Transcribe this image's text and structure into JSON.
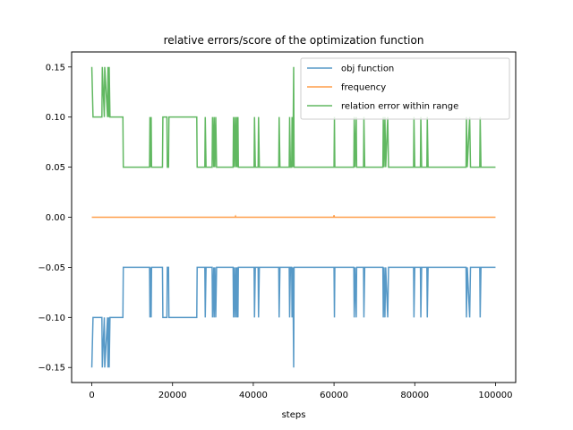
{
  "chart_data": {
    "type": "line",
    "title": "relative errors/score of the optimization function",
    "xlabel": "steps",
    "ylabel": "",
    "xlim": [
      -5000,
      105000
    ],
    "ylim": [
      -0.165,
      0.165
    ],
    "xticks": [
      0,
      20000,
      40000,
      60000,
      80000,
      100000
    ],
    "yticks": [
      -0.15,
      -0.1,
      -0.05,
      0.0,
      0.05,
      0.1,
      0.15
    ],
    "ytick_labels": [
      "−0.15",
      "−0.10",
      "−0.05",
      "0.00",
      "0.05",
      "0.10",
      "0.15"
    ],
    "grid": false,
    "legend_position": "upper-right",
    "series": [
      {
        "name": "obj function",
        "color": "#1f77b4",
        "points": [
          [
            0,
            -0.15
          ],
          [
            300,
            -0.1
          ],
          [
            2500,
            -0.1
          ],
          [
            2600,
            -0.15
          ],
          [
            3100,
            -0.1
          ],
          [
            3200,
            -0.15
          ],
          [
            3900,
            -0.1
          ],
          [
            4000,
            -0.15
          ],
          [
            4200,
            -0.1
          ],
          [
            4300,
            -0.15
          ],
          [
            4500,
            -0.1
          ],
          [
            7700,
            -0.1
          ],
          [
            7800,
            -0.05
          ],
          [
            14300,
            -0.05
          ],
          [
            14400,
            -0.1
          ],
          [
            14500,
            -0.05
          ],
          [
            14700,
            -0.1
          ],
          [
            14800,
            -0.05
          ],
          [
            17500,
            -0.05
          ],
          [
            17600,
            -0.1
          ],
          [
            18600,
            -0.1
          ],
          [
            18700,
            -0.05
          ],
          [
            19000,
            -0.05
          ],
          [
            19100,
            -0.1
          ],
          [
            26000,
            -0.1
          ],
          [
            26100,
            -0.05
          ],
          [
            28000,
            -0.05
          ],
          [
            28100,
            -0.1
          ],
          [
            28300,
            -0.05
          ],
          [
            29800,
            -0.05
          ],
          [
            29900,
            -0.1
          ],
          [
            30200,
            -0.05
          ],
          [
            30300,
            -0.1
          ],
          [
            30500,
            -0.05
          ],
          [
            30700,
            -0.1
          ],
          [
            30900,
            -0.05
          ],
          [
            35000,
            -0.05
          ],
          [
            35100,
            -0.1
          ],
          [
            35300,
            -0.05
          ],
          [
            35500,
            -0.1
          ],
          [
            35700,
            -0.05
          ],
          [
            35900,
            -0.1
          ],
          [
            36000,
            -0.05
          ],
          [
            36200,
            -0.1
          ],
          [
            36300,
            -0.05
          ],
          [
            40200,
            -0.05
          ],
          [
            40300,
            -0.1
          ],
          [
            40500,
            -0.05
          ],
          [
            41200,
            -0.05
          ],
          [
            41300,
            -0.1
          ],
          [
            41500,
            -0.05
          ],
          [
            46300,
            -0.05
          ],
          [
            46400,
            -0.1
          ],
          [
            46600,
            -0.05
          ],
          [
            48900,
            -0.05
          ],
          [
            49000,
            -0.1
          ],
          [
            49200,
            -0.05
          ],
          [
            49500,
            -0.05
          ],
          [
            49600,
            -0.1
          ],
          [
            49800,
            -0.05
          ],
          [
            50000,
            -0.15
          ],
          [
            50100,
            -0.05
          ],
          [
            60000,
            -0.05
          ],
          [
            60100,
            -0.1
          ],
          [
            60200,
            -0.05
          ],
          [
            64900,
            -0.05
          ],
          [
            65000,
            -0.1
          ],
          [
            65200,
            -0.05
          ],
          [
            65500,
            -0.1
          ],
          [
            65600,
            -0.05
          ],
          [
            67300,
            -0.05
          ],
          [
            67400,
            -0.1
          ],
          [
            67600,
            -0.05
          ],
          [
            72100,
            -0.05
          ],
          [
            72200,
            -0.1
          ],
          [
            72400,
            -0.05
          ],
          [
            72600,
            -0.1
          ],
          [
            72800,
            -0.05
          ],
          [
            73300,
            -0.1
          ],
          [
            73500,
            -0.05
          ],
          [
            79700,
            -0.05
          ],
          [
            79800,
            -0.1
          ],
          [
            80000,
            -0.05
          ],
          [
            81400,
            -0.05
          ],
          [
            81500,
            -0.1
          ],
          [
            81700,
            -0.05
          ],
          [
            83000,
            -0.05
          ],
          [
            83100,
            -0.1
          ],
          [
            83300,
            -0.05
          ],
          [
            92700,
            -0.05
          ],
          [
            92800,
            -0.1
          ],
          [
            93000,
            -0.05
          ],
          [
            93600,
            -0.1
          ],
          [
            93800,
            -0.05
          ],
          [
            96100,
            -0.05
          ],
          [
            96200,
            -0.1
          ],
          [
            96400,
            -0.05
          ],
          [
            100000,
            -0.05
          ]
        ]
      },
      {
        "name": "frequency",
        "color": "#ff7f0e",
        "points": [
          [
            0,
            0.0
          ],
          [
            35500,
            0.0
          ],
          [
            35600,
            0.001
          ],
          [
            35700,
            0.0
          ],
          [
            59900,
            0.0
          ],
          [
            60000,
            0.002
          ],
          [
            60100,
            0.0
          ],
          [
            100000,
            0.0
          ]
        ]
      },
      {
        "name": "relation error within range",
        "color": "#2ca02c",
        "points": [
          [
            0,
            0.15
          ],
          [
            300,
            0.1
          ],
          [
            2500,
            0.1
          ],
          [
            2600,
            0.15
          ],
          [
            3100,
            0.1
          ],
          [
            3200,
            0.15
          ],
          [
            3900,
            0.1
          ],
          [
            4000,
            0.15
          ],
          [
            4200,
            0.1
          ],
          [
            4300,
            0.15
          ],
          [
            4500,
            0.1
          ],
          [
            7700,
            0.1
          ],
          [
            7800,
            0.05
          ],
          [
            14300,
            0.05
          ],
          [
            14400,
            0.1
          ],
          [
            14500,
            0.05
          ],
          [
            14700,
            0.1
          ],
          [
            14800,
            0.05
          ],
          [
            17500,
            0.05
          ],
          [
            17600,
            0.1
          ],
          [
            18600,
            0.1
          ],
          [
            18700,
            0.05
          ],
          [
            19000,
            0.05
          ],
          [
            19100,
            0.1
          ],
          [
            26000,
            0.1
          ],
          [
            26100,
            0.05
          ],
          [
            28000,
            0.05
          ],
          [
            28100,
            0.1
          ],
          [
            28300,
            0.05
          ],
          [
            29800,
            0.05
          ],
          [
            29900,
            0.1
          ],
          [
            30200,
            0.05
          ],
          [
            30300,
            0.1
          ],
          [
            30500,
            0.05
          ],
          [
            30700,
            0.1
          ],
          [
            30900,
            0.05
          ],
          [
            35000,
            0.05
          ],
          [
            35100,
            0.1
          ],
          [
            35300,
            0.05
          ],
          [
            35500,
            0.1
          ],
          [
            35700,
            0.05
          ],
          [
            35900,
            0.1
          ],
          [
            36000,
            0.05
          ],
          [
            36200,
            0.1
          ],
          [
            36300,
            0.05
          ],
          [
            40200,
            0.05
          ],
          [
            40300,
            0.1
          ],
          [
            40500,
            0.05
          ],
          [
            41200,
            0.05
          ],
          [
            41300,
            0.1
          ],
          [
            41500,
            0.05
          ],
          [
            46300,
            0.05
          ],
          [
            46400,
            0.1
          ],
          [
            46600,
            0.05
          ],
          [
            48900,
            0.05
          ],
          [
            49000,
            0.1
          ],
          [
            49200,
            0.05
          ],
          [
            49500,
            0.05
          ],
          [
            49600,
            0.1
          ],
          [
            49800,
            0.05
          ],
          [
            50000,
            0.15
          ],
          [
            50100,
            0.05
          ],
          [
            60000,
            0.05
          ],
          [
            60100,
            0.1
          ],
          [
            60200,
            0.05
          ],
          [
            64900,
            0.05
          ],
          [
            65000,
            0.1
          ],
          [
            65200,
            0.05
          ],
          [
            65500,
            0.1
          ],
          [
            65600,
            0.05
          ],
          [
            67300,
            0.05
          ],
          [
            67400,
            0.1
          ],
          [
            67600,
            0.05
          ],
          [
            72100,
            0.05
          ],
          [
            72200,
            0.1
          ],
          [
            72400,
            0.05
          ],
          [
            72600,
            0.1
          ],
          [
            72800,
            0.05
          ],
          [
            73300,
            0.1
          ],
          [
            73500,
            0.05
          ],
          [
            79700,
            0.05
          ],
          [
            79800,
            0.1
          ],
          [
            80000,
            0.05
          ],
          [
            81400,
            0.05
          ],
          [
            81500,
            0.1
          ],
          [
            81700,
            0.05
          ],
          [
            83000,
            0.05
          ],
          [
            83100,
            0.1
          ],
          [
            83300,
            0.05
          ],
          [
            92700,
            0.05
          ],
          [
            92800,
            0.1
          ],
          [
            93000,
            0.05
          ],
          [
            93600,
            0.1
          ],
          [
            93800,
            0.05
          ],
          [
            96100,
            0.05
          ],
          [
            96200,
            0.1
          ],
          [
            96400,
            0.05
          ],
          [
            100000,
            0.05
          ]
        ]
      }
    ]
  }
}
